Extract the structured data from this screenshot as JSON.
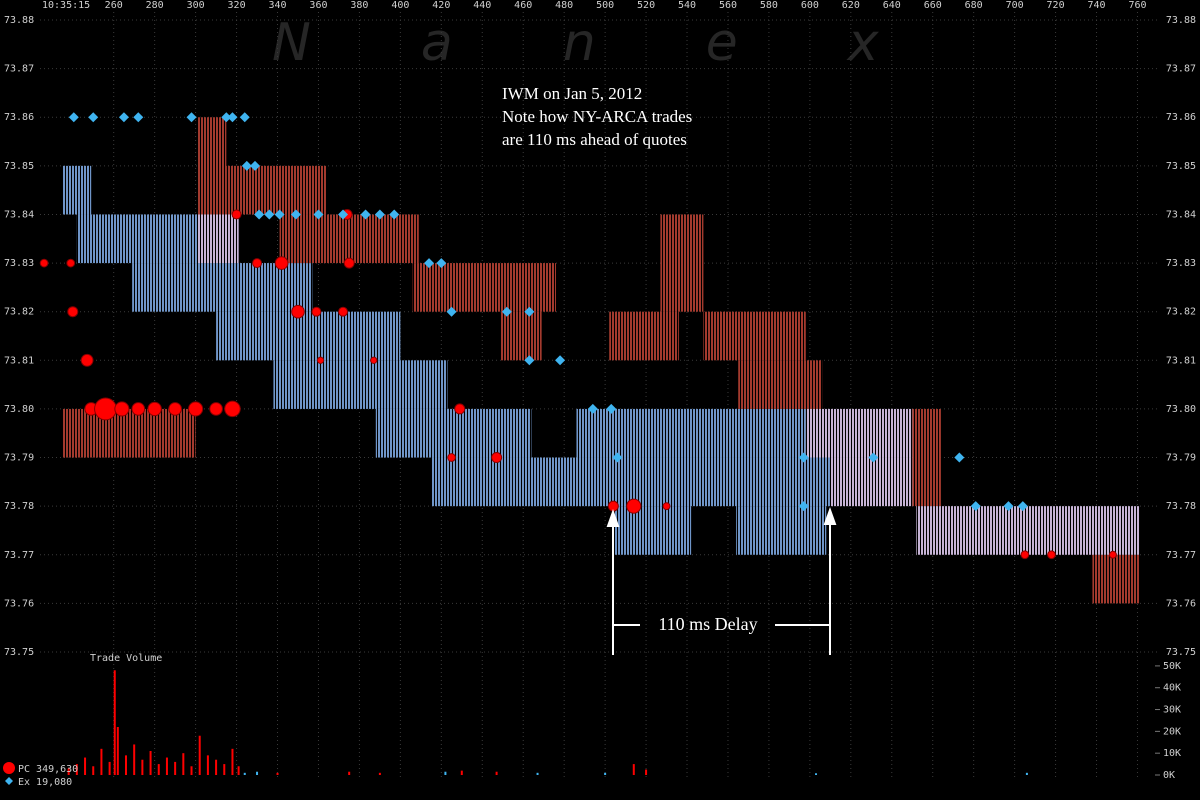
{
  "chart_data": {
    "type": "montage",
    "time_label": "10:35:15",
    "watermark": "Nanex",
    "annotation": [
      "IWM on Jan 5, 2012",
      "Note how NY-ARCA trades",
      "are 110 ms ahead of quotes"
    ],
    "delay_label": "110 ms Delay",
    "volume_title": "Trade Volume",
    "xlim": [
      224,
      771
    ],
    "xticks": [
      260,
      280,
      300,
      320,
      340,
      360,
      380,
      400,
      420,
      440,
      460,
      480,
      500,
      520,
      540,
      560,
      580,
      600,
      620,
      640,
      660,
      680,
      700,
      720,
      740,
      760
    ],
    "ylim": [
      73.75,
      73.88
    ],
    "yticks": [
      73.75,
      73.76,
      73.77,
      73.78,
      73.79,
      {
        "value": 73.8,
        "label": "73.80"
      },
      73.81,
      73.82,
      73.83,
      73.84,
      73.85,
      73.86,
      73.87,
      73.88
    ],
    "grid": true,
    "bid_color": "#6f95c8",
    "ask_color": "#a33a2e",
    "locked_color": "#c7b4d6",
    "bid_bands": [
      {
        "start": 235,
        "end": 249,
        "low": 73.84,
        "high": 73.85
      },
      {
        "start": 242,
        "end": 321,
        "low": 73.83,
        "high": 73.84
      },
      {
        "start": 269,
        "end": 357,
        "low": 73.82,
        "high": 73.83
      },
      {
        "start": 310,
        "end": 400,
        "low": 73.81,
        "high": 73.82
      },
      {
        "start": 338,
        "end": 423,
        "low": 73.8,
        "high": 73.81
      },
      {
        "start": 388,
        "end": 464,
        "low": 73.79,
        "high": 73.8
      },
      {
        "start": 486,
        "end": 598,
        "low": 73.79,
        "high": 73.8
      },
      {
        "start": 415,
        "end": 610,
        "low": 73.78,
        "high": 73.79
      },
      {
        "start": 504,
        "end": 542,
        "low": 73.77,
        "high": 73.78
      },
      {
        "start": 564,
        "end": 608,
        "low": 73.77,
        "high": 73.78
      }
    ],
    "ask_bands": [
      {
        "start": 235,
        "end": 300,
        "low": 73.79,
        "high": 73.8
      },
      {
        "start": 301,
        "end": 315,
        "low": 73.84,
        "high": 73.86
      },
      {
        "start": 315,
        "end": 364,
        "low": 73.84,
        "high": 73.85
      },
      {
        "start": 341,
        "end": 409,
        "low": 73.83,
        "high": 73.84
      },
      {
        "start": 406,
        "end": 476,
        "low": 73.82,
        "high": 73.83
      },
      {
        "start": 449,
        "end": 469,
        "low": 73.81,
        "high": 73.82
      },
      {
        "start": 502,
        "end": 536,
        "low": 73.81,
        "high": 73.82
      },
      {
        "start": 527,
        "end": 548,
        "low": 73.82,
        "high": 73.84
      },
      {
        "start": 548,
        "end": 598,
        "low": 73.81,
        "high": 73.82
      },
      {
        "start": 565,
        "end": 606,
        "low": 73.8,
        "high": 73.81
      },
      {
        "start": 650,
        "end": 664,
        "low": 73.78,
        "high": 73.8
      },
      {
        "start": 738,
        "end": 761,
        "low": 73.76,
        "high": 73.77
      }
    ],
    "locked_bands": [
      {
        "start": 301,
        "end": 321,
        "low": 73.83,
        "high": 73.84
      },
      {
        "start": 598,
        "end": 650,
        "low": 73.79,
        "high": 73.8
      },
      {
        "start": 610,
        "end": 650,
        "low": 73.78,
        "high": 73.79
      },
      {
        "start": 652,
        "end": 761,
        "low": 73.77,
        "high": 73.78
      }
    ],
    "quotes": {
      "name": "Ex  19,080",
      "color": "#3fb4f0",
      "x": [
        240.5,
        250,
        265,
        272,
        298,
        315,
        318,
        324,
        325,
        329,
        331,
        336,
        341,
        349,
        360,
        372,
        383,
        390,
        397,
        414,
        420,
        425,
        452,
        463,
        463,
        478,
        494,
        503,
        506,
        597,
        631,
        673,
        597,
        681,
        697,
        704
      ],
      "values": [
        73.86,
        73.86,
        73.86,
        73.86,
        73.86,
        73.86,
        73.86,
        73.86,
        73.85,
        73.85,
        73.84,
        73.84,
        73.84,
        73.84,
        73.84,
        73.84,
        73.84,
        73.84,
        73.84,
        73.83,
        73.83,
        73.82,
        73.82,
        73.82,
        73.81,
        73.81,
        73.8,
        73.8,
        73.79,
        73.79,
        73.79,
        73.79,
        73.78,
        73.78,
        73.78,
        73.78
      ]
    },
    "trades": {
      "name": "PC 349,630",
      "color": "#ff0000",
      "x": [
        226,
        239,
        240,
        247,
        249,
        256,
        264,
        272,
        280,
        290,
        300,
        310,
        318,
        320,
        374,
        330,
        342,
        375,
        350,
        359,
        372,
        361,
        387,
        429,
        425,
        447,
        504,
        514,
        530,
        705,
        718,
        748
      ],
      "values": [
        73.83,
        73.83,
        73.82,
        73.81,
        73.8,
        73.8,
        73.8,
        73.8,
        73.8,
        73.8,
        73.8,
        73.8,
        73.8,
        73.84,
        73.84,
        73.83,
        73.83,
        73.83,
        73.82,
        73.82,
        73.82,
        73.81,
        73.81,
        73.8,
        73.79,
        73.79,
        73.78,
        73.78,
        73.78,
        73.77,
        73.77,
        73.77
      ],
      "sizes": [
        1500,
        1500,
        2500,
        3500,
        4000,
        12000,
        5000,
        4000,
        4500,
        4000,
        5000,
        4000,
        6000,
        2000,
        2500,
        2000,
        4000,
        2500,
        4000,
        2000,
        2000,
        1000,
        1000,
        2500,
        1500,
        2500,
        2500,
        5000,
        1200,
        1500,
        1500,
        1200
      ]
    },
    "volume": {
      "ylim": [
        0,
        55000
      ],
      "yticks": [
        {
          "value": 0,
          "label": "0K"
        },
        {
          "value": 10000,
          "label": "10K"
        },
        {
          "value": 20000,
          "label": "20K"
        },
        {
          "value": 30000,
          "label": "30K"
        },
        {
          "value": 40000,
          "label": "40K"
        },
        {
          "value": 50000,
          "label": "50K"
        }
      ],
      "series": [
        {
          "color": "#ff0000",
          "x": [
            238,
            242,
            246,
            250,
            254,
            258,
            260.5,
            262,
            266,
            270,
            274,
            278,
            282,
            286,
            290,
            294,
            298,
            302,
            306,
            310,
            314,
            318,
            321,
            340,
            375,
            390,
            430,
            447,
            514,
            520
          ],
          "values": [
            3000,
            5000,
            8000,
            4000,
            12000,
            6000,
            48000,
            22000,
            9000,
            14000,
            7000,
            11000,
            5000,
            8000,
            6000,
            10000,
            4000,
            18000,
            9000,
            7000,
            5000,
            12000,
            4000,
            1000,
            1500,
            1000,
            2000,
            1500,
            5000,
            2500
          ]
        },
        {
          "color": "#3fb4f0",
          "x": [
            324,
            330,
            422,
            467,
            500,
            603,
            706
          ],
          "values": [
            1000,
            1500,
            1500,
            1000,
            1000,
            800,
            1000
          ]
        }
      ]
    }
  }
}
